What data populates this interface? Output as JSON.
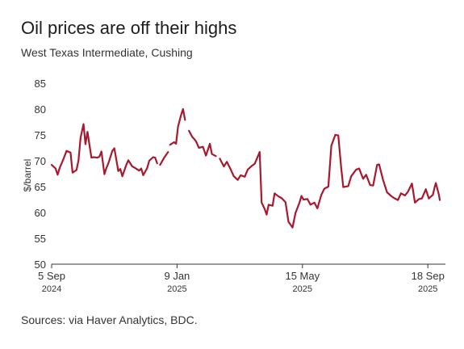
{
  "chart_data": {
    "type": "line",
    "title": "Oil prices are off their highs",
    "subtitle": "West Texas Intermediate, Cushing",
    "ylabel": "$/barrel",
    "ylim": [
      50,
      85
    ],
    "yticks": [
      50,
      55,
      60,
      65,
      70,
      75,
      80,
      85
    ],
    "xlim": [
      "2024-09-05",
      "2025-09-30"
    ],
    "xticks": [
      {
        "date": "2024-09-05",
        "day": "5 Sep",
        "year": "2024"
      },
      {
        "date": "2025-01-09",
        "day": "9 Jan",
        "year": "2025"
      },
      {
        "date": "2025-05-15",
        "day": "15 May",
        "year": "2025"
      },
      {
        "date": "2025-09-18",
        "day": "18 Sep",
        "year": "2025"
      }
    ],
    "grid": false,
    "line_color": "#a6192e",
    "series": [
      {
        "values": [
          [
            "2024-09-05",
            69.2
          ],
          [
            "2024-09-09",
            68.5
          ],
          [
            "2024-09-11",
            67.3
          ],
          [
            "2024-09-13",
            68.6
          ],
          [
            "2024-09-17",
            70.4
          ],
          [
            "2024-09-20",
            71.9
          ],
          [
            "2024-09-24",
            71.6
          ],
          [
            "2024-09-26",
            67.7
          ],
          [
            "2024-09-30",
            68.2
          ],
          [
            "2024-10-02",
            70.1
          ],
          [
            "2024-10-04",
            74.4
          ],
          [
            "2024-10-07",
            77.1
          ],
          [
            "2024-10-09",
            73.2
          ],
          [
            "2024-10-11",
            75.6
          ],
          [
            "2024-10-15",
            70.6
          ],
          [
            "2024-10-17",
            70.7
          ],
          [
            "2024-10-21",
            70.6
          ],
          [
            "2024-10-23",
            70.8
          ],
          [
            "2024-10-25",
            71.8
          ],
          [
            "2024-10-28",
            67.4
          ],
          [
            "2024-10-30",
            68.6
          ],
          [
            "2024-11-01",
            69.5
          ],
          [
            "2024-11-05",
            71.9
          ],
          [
            "2024-11-07",
            72.4
          ],
          [
            "2024-11-11",
            68.0
          ],
          [
            "2024-11-13",
            68.4
          ],
          [
            "2024-11-15",
            67.0
          ],
          [
            "2024-11-19",
            69.2
          ],
          [
            "2024-11-21",
            70.1
          ],
          [
            "2024-11-25",
            68.9
          ],
          [
            "2024-11-27",
            68.7
          ],
          [
            "2024-12-02",
            68.1
          ],
          [
            "2024-12-04",
            68.5
          ],
          [
            "2024-12-06",
            67.2
          ],
          [
            "2024-12-10",
            68.6
          ],
          [
            "2024-12-12",
            70.0
          ],
          [
            "2024-12-16",
            70.7
          ],
          [
            "2024-12-18",
            70.6
          ],
          [
            "2024-12-20",
            69.5
          ],
          null,
          [
            "2024-12-23",
            69.2
          ],
          [
            "2024-12-27",
            70.6
          ],
          [
            "2024-12-31",
            71.7
          ],
          null,
          [
            "2025-01-02",
            73.1
          ],
          [
            "2025-01-06",
            73.6
          ],
          [
            "2025-01-08",
            73.3
          ],
          [
            "2025-01-10",
            76.6
          ],
          [
            "2025-01-13",
            78.8
          ],
          [
            "2025-01-15",
            80.0
          ],
          [
            "2025-01-17",
            77.9
          ],
          null,
          [
            "2025-01-21",
            75.8
          ],
          [
            "2025-01-24",
            74.7
          ],
          [
            "2025-01-28",
            73.8
          ],
          [
            "2025-01-31",
            72.5
          ],
          [
            "2025-02-04",
            72.7
          ],
          [
            "2025-02-07",
            71.0
          ],
          [
            "2025-02-11",
            73.3
          ],
          [
            "2025-02-13",
            71.3
          ],
          [
            "2025-02-17",
            70.9
          ],
          null,
          [
            "2025-02-21",
            70.4
          ],
          [
            "2025-02-25",
            68.9
          ],
          [
            "2025-02-28",
            69.8
          ],
          [
            "2025-03-04",
            68.3
          ],
          [
            "2025-03-07",
            67.0
          ],
          [
            "2025-03-11",
            66.3
          ],
          [
            "2025-03-14",
            67.2
          ],
          [
            "2025-03-18",
            66.9
          ],
          [
            "2025-03-21",
            68.3
          ],
          [
            "2025-03-25",
            69.0
          ],
          [
            "2025-03-28",
            69.4
          ],
          [
            "2025-04-01",
            71.2
          ],
          [
            "2025-04-02",
            71.7
          ],
          [
            "2025-04-04",
            61.9
          ],
          [
            "2025-04-07",
            60.7
          ],
          [
            "2025-04-09",
            59.6
          ],
          [
            "2025-04-11",
            61.5
          ],
          [
            "2025-04-15",
            61.3
          ],
          [
            "2025-04-17",
            63.7
          ],
          [
            "2025-04-21",
            63.1
          ],
          [
            "2025-04-24",
            62.8
          ],
          [
            "2025-04-28",
            62.0
          ],
          [
            "2025-05-01",
            58.2
          ],
          [
            "2025-05-05",
            57.1
          ],
          [
            "2025-05-08",
            59.9
          ],
          [
            "2025-05-12",
            61.9
          ],
          [
            "2025-05-14",
            63.2
          ],
          [
            "2025-05-16",
            62.5
          ],
          [
            "2025-05-20",
            62.6
          ],
          [
            "2025-05-23",
            61.5
          ],
          [
            "2025-05-27",
            61.9
          ],
          [
            "2025-05-30",
            60.8
          ],
          [
            "2025-06-03",
            63.4
          ],
          [
            "2025-06-06",
            64.6
          ],
          [
            "2025-06-10",
            65.0
          ],
          [
            "2025-06-13",
            72.9
          ],
          [
            "2025-06-17",
            75.0
          ],
          [
            "2025-06-20",
            74.9
          ],
          [
            "2025-06-23",
            68.5
          ],
          [
            "2025-06-25",
            64.9
          ],
          [
            "2025-06-30",
            65.1
          ],
          [
            "2025-07-03",
            67.0
          ],
          [
            "2025-07-08",
            68.3
          ],
          [
            "2025-07-11",
            68.5
          ],
          [
            "2025-07-15",
            66.5
          ],
          [
            "2025-07-18",
            67.3
          ],
          [
            "2025-07-22",
            65.3
          ],
          [
            "2025-07-25",
            65.2
          ],
          [
            "2025-07-29",
            69.2
          ],
          [
            "2025-07-31",
            69.3
          ],
          [
            "2025-08-04",
            66.3
          ],
          [
            "2025-08-08",
            63.9
          ],
          [
            "2025-08-12",
            63.2
          ],
          [
            "2025-08-15",
            62.8
          ],
          [
            "2025-08-19",
            62.4
          ],
          [
            "2025-08-22",
            63.7
          ],
          [
            "2025-08-26",
            63.3
          ],
          [
            "2025-08-29",
            64.0
          ],
          [
            "2025-09-02",
            65.6
          ],
          [
            "2025-09-05",
            61.9
          ],
          [
            "2025-09-09",
            62.6
          ],
          [
            "2025-09-12",
            62.7
          ],
          [
            "2025-09-16",
            64.5
          ],
          [
            "2025-09-19",
            62.7
          ],
          [
            "2025-09-23",
            63.4
          ],
          [
            "2025-09-25",
            65.0
          ],
          [
            "2025-09-26",
            65.7
          ],
          [
            "2025-09-29",
            63.5
          ],
          [
            "2025-09-30",
            62.4
          ]
        ]
      }
    ],
    "source": "Sources: via Haver Analytics, BDC."
  }
}
